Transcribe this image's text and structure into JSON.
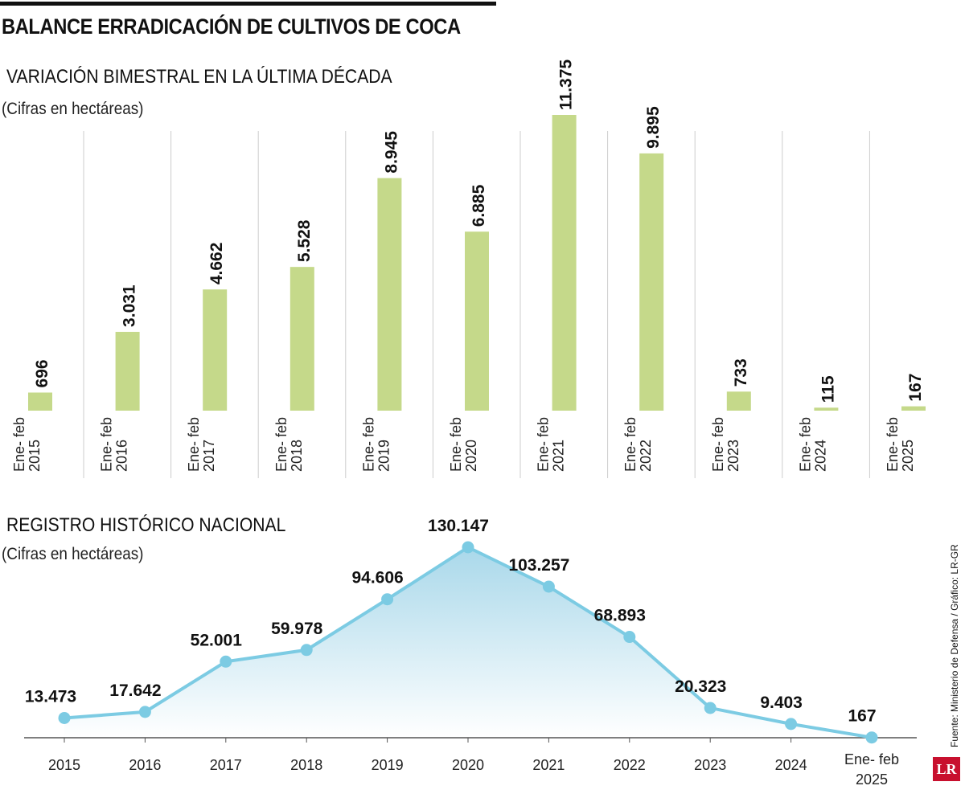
{
  "title": "BALANCE ERRADICACIÓN DE CULTIVOS DE COCA",
  "source": "Fuente: Ministerio de Defensa / Gráfico: LR-GR",
  "logo": "LR",
  "chart_data": [
    {
      "type": "bar",
      "title": "VARIACIÓN BIMESTRAL EN LA ÚLTIMA DÉCADA",
      "subtitle": "(Cifras en hectáreas)",
      "categories": [
        [
          "Ene- feb",
          "2015"
        ],
        [
          "Ene- feb",
          "2016"
        ],
        [
          "Ene- feb",
          "2017"
        ],
        [
          "Ene- feb",
          "2018"
        ],
        [
          "Ene- feb",
          "2019"
        ],
        [
          "Ene- feb",
          "2020"
        ],
        [
          "Ene- feb",
          "2021"
        ],
        [
          "Ene- feb",
          "2022"
        ],
        [
          "Ene- feb",
          "2023"
        ],
        [
          "Ene- feb",
          "2024"
        ],
        [
          "Ene- feb",
          "2025"
        ]
      ],
      "values": [
        696,
        3031,
        4662,
        5528,
        8945,
        6885,
        11375,
        9895,
        733,
        115,
        167
      ],
      "labels": [
        "696",
        "3.031",
        "4.662",
        "5.528",
        "8.945",
        "6.885",
        "11.375",
        "9.895",
        "733",
        "115",
        "167"
      ],
      "color": "#c5d98a",
      "grid": false
    },
    {
      "type": "area",
      "title": "REGISTRO HISTÓRICO NACIONAL",
      "subtitle": "(Cifras en hectáreas)",
      "categories": [
        [
          "2015"
        ],
        [
          "2016"
        ],
        [
          "2017"
        ],
        [
          "2018"
        ],
        [
          "2019"
        ],
        [
          "2020"
        ],
        [
          "2021"
        ],
        [
          "2022"
        ],
        [
          "2023"
        ],
        [
          "2024"
        ],
        [
          "Ene- feb",
          "2025"
        ]
      ],
      "values": [
        13473,
        17642,
        52001,
        59978,
        94606,
        130147,
        103257,
        68893,
        20323,
        9403,
        167
      ],
      "labels": [
        "13.473",
        "17.642",
        "52.001",
        "59.978",
        "94.606",
        "130.147",
        "103.257",
        "68.893",
        "20.323",
        "9.403",
        "167"
      ],
      "color": "#7ccbe3",
      "grid": false
    }
  ]
}
